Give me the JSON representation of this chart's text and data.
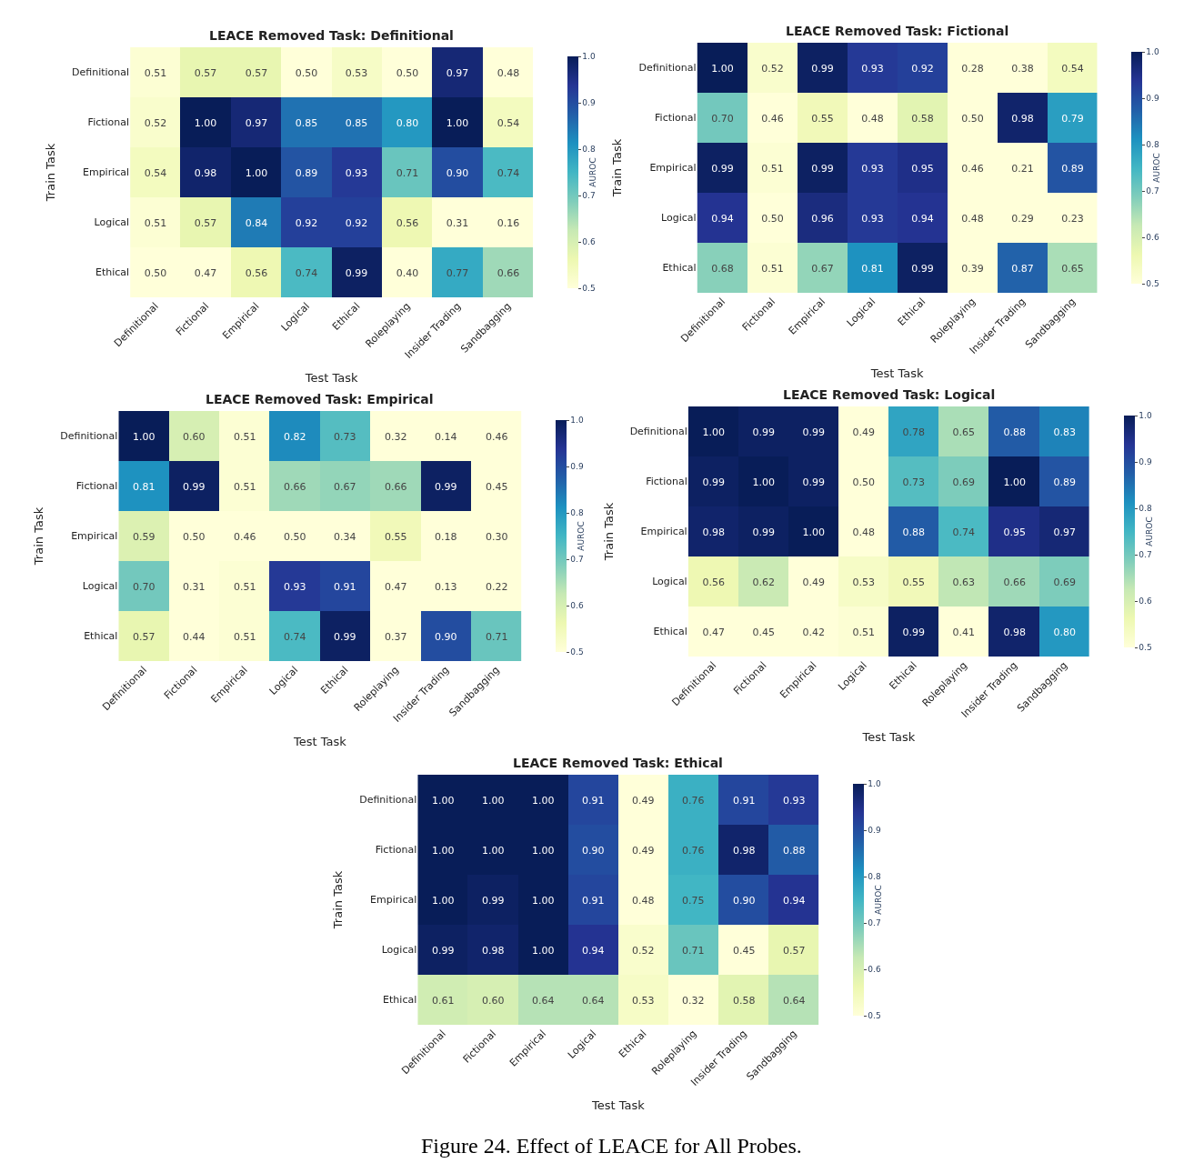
{
  "chart_data": [
    {
      "type": "heatmap",
      "title": "LEACE Removed Task: Definitional",
      "xlabel": "Test Task",
      "ylabel": "Train Task",
      "clabel": "AUROC",
      "categories": [
        "Definitional",
        "Fictional",
        "Empirical",
        "Logical",
        "Ethical",
        "Roleplaying",
        "Insider Trading",
        "Sandbagging"
      ],
      "y_categories": [
        "Definitional",
        "Fictional",
        "Empirical",
        "Logical",
        "Ethical"
      ],
      "cells": [
        [
          0.51,
          0.57,
          0.57,
          0.5,
          0.53,
          0.5,
          0.97,
          0.48
        ],
        [
          0.52,
          1.0,
          0.97,
          0.85,
          0.85,
          0.8,
          1.0,
          0.54
        ],
        [
          0.54,
          0.98,
          1.0,
          0.89,
          0.93,
          0.71,
          0.9,
          0.74
        ],
        [
          0.51,
          0.57,
          0.84,
          0.92,
          0.92,
          0.56,
          0.31,
          0.16
        ],
        [
          0.5,
          0.47,
          0.56,
          0.74,
          0.99,
          0.4,
          0.77,
          0.66
        ]
      ],
      "cell_labels": [
        [
          "0.51",
          "0.57",
          "0.57",
          "0.50",
          "0.53",
          "0.50",
          "0.97",
          "0.48"
        ],
        [
          "0.52",
          "1.00",
          "0.97",
          "0.85",
          "0.85",
          "0.80",
          "1.00",
          "0.54"
        ],
        [
          "0.54",
          "0.98",
          "1.00",
          "0.89",
          "0.93",
          "0.71",
          "0.90",
          "0.74"
        ],
        [
          "0.51",
          "0.57",
          "0.84",
          "0.92",
          "0.92",
          "0.56",
          "0.31",
          "0.16"
        ],
        [
          "0.50",
          "0.47",
          "0.56",
          "0.74",
          "0.99",
          "0.40",
          "0.77",
          "0.66"
        ]
      ],
      "clim": [
        0.5,
        1.0
      ],
      "cticks": [
        {
          "value": 0.5,
          "label": "0.5"
        },
        {
          "value": 0.6,
          "label": "0.6"
        },
        {
          "value": 0.7,
          "label": "0.7"
        },
        {
          "value": 0.8,
          "label": "0.8"
        },
        {
          "value": 0.9,
          "label": "0.9"
        },
        {
          "value": 1.0,
          "label": "1.0"
        }
      ]
    },
    {
      "type": "heatmap",
      "title": "LEACE Removed Task: Fictional",
      "xlabel": "Test Task",
      "ylabel": "Train Task",
      "clabel": "AUROC",
      "categories": [
        "Definitional",
        "Fictional",
        "Empirical",
        "Logical",
        "Ethical",
        "Roleplaying",
        "Insider Trading",
        "Sandbagging"
      ],
      "y_categories": [
        "Definitional",
        "Fictional",
        "Empirical",
        "Logical",
        "Ethical"
      ],
      "cells": [
        [
          1.0,
          0.52,
          0.99,
          0.93,
          0.92,
          0.28,
          0.38,
          0.54
        ],
        [
          0.7,
          0.46,
          0.55,
          0.48,
          0.58,
          0.5,
          0.98,
          0.79
        ],
        [
          0.99,
          0.51,
          0.99,
          0.93,
          0.95,
          0.46,
          0.21,
          0.89
        ],
        [
          0.94,
          0.5,
          0.96,
          0.93,
          0.94,
          0.48,
          0.29,
          0.23
        ],
        [
          0.68,
          0.51,
          0.67,
          0.81,
          0.99,
          0.39,
          0.87,
          0.65
        ]
      ],
      "cell_labels": [
        [
          "1.00",
          "0.52",
          "0.99",
          "0.93",
          "0.92",
          "0.28",
          "0.38",
          "0.54"
        ],
        [
          "0.70",
          "0.46",
          "0.55",
          "0.48",
          "0.58",
          "0.50",
          "0.98",
          "0.79"
        ],
        [
          "0.99",
          "0.51",
          "0.99",
          "0.93",
          "0.95",
          "0.46",
          "0.21",
          "0.89"
        ],
        [
          "0.94",
          "0.50",
          "0.96",
          "0.93",
          "0.94",
          "0.48",
          "0.29",
          "0.23"
        ],
        [
          "0.68",
          "0.51",
          "0.67",
          "0.81",
          "0.99",
          "0.39",
          "0.87",
          "0.65"
        ]
      ],
      "clim": [
        0.5,
        1.0
      ],
      "cticks": [
        {
          "value": 0.5,
          "label": "0.5"
        },
        {
          "value": 0.6,
          "label": "0.6"
        },
        {
          "value": 0.7,
          "label": "0.7"
        },
        {
          "value": 0.8,
          "label": "0.8"
        },
        {
          "value": 0.9,
          "label": "0.9"
        },
        {
          "value": 1.0,
          "label": "1.0"
        }
      ]
    },
    {
      "type": "heatmap",
      "title": "LEACE Removed Task: Empirical",
      "xlabel": "Test Task",
      "ylabel": "Train Task",
      "clabel": "AUROC",
      "categories": [
        "Definitional",
        "Fictional",
        "Empirical",
        "Logical",
        "Ethical",
        "Roleplaying",
        "Insider Trading",
        "Sandbagging"
      ],
      "y_categories": [
        "Definitional",
        "Fictional",
        "Empirical",
        "Logical",
        "Ethical"
      ],
      "cells": [
        [
          1.0,
          0.6,
          0.51,
          0.82,
          0.73,
          0.32,
          0.14,
          0.46
        ],
        [
          0.81,
          0.99,
          0.51,
          0.66,
          0.67,
          0.66,
          0.99,
          0.45
        ],
        [
          0.59,
          0.5,
          0.46,
          0.5,
          0.34,
          0.55,
          0.18,
          0.3
        ],
        [
          0.7,
          0.31,
          0.51,
          0.93,
          0.91,
          0.47,
          0.13,
          0.22
        ],
        [
          0.57,
          0.44,
          0.51,
          0.74,
          0.99,
          0.37,
          0.9,
          0.71
        ]
      ],
      "cell_labels": [
        [
          "1.00",
          "0.60",
          "0.51",
          "0.82",
          "0.73",
          "0.32",
          "0.14",
          "0.46"
        ],
        [
          "0.81",
          "0.99",
          "0.51",
          "0.66",
          "0.67",
          "0.66",
          "0.99",
          "0.45"
        ],
        [
          "0.59",
          "0.50",
          "0.46",
          "0.50",
          "0.34",
          "0.55",
          "0.18",
          "0.30"
        ],
        [
          "0.70",
          "0.31",
          "0.51",
          "0.93",
          "0.91",
          "0.47",
          "0.13",
          "0.22"
        ],
        [
          "0.57",
          "0.44",
          "0.51",
          "0.74",
          "0.99",
          "0.37",
          "0.90",
          "0.71"
        ]
      ],
      "clim": [
        0.5,
        1.0
      ],
      "cticks": [
        {
          "value": 0.5,
          "label": "0.5"
        },
        {
          "value": 0.6,
          "label": "0.6"
        },
        {
          "value": 0.7,
          "label": "0.7"
        },
        {
          "value": 0.8,
          "label": "0.8"
        },
        {
          "value": 0.9,
          "label": "0.9"
        },
        {
          "value": 1.0,
          "label": "1.0"
        }
      ]
    },
    {
      "type": "heatmap",
      "title": "LEACE Removed Task: Logical",
      "xlabel": "Test Task",
      "ylabel": "Train Task",
      "clabel": "AUROC",
      "categories": [
        "Definitional",
        "Fictional",
        "Empirical",
        "Logical",
        "Ethical",
        "Roleplaying",
        "Insider Trading",
        "Sandbagging"
      ],
      "y_categories": [
        "Definitional",
        "Fictional",
        "Empirical",
        "Logical",
        "Ethical"
      ],
      "cells": [
        [
          1.0,
          0.99,
          0.99,
          0.49,
          0.78,
          0.65,
          0.88,
          0.83
        ],
        [
          0.99,
          1.0,
          0.99,
          0.5,
          0.73,
          0.69,
          1.0,
          0.89
        ],
        [
          0.98,
          0.99,
          1.0,
          0.48,
          0.88,
          0.74,
          0.95,
          0.97
        ],
        [
          0.56,
          0.62,
          0.49,
          0.53,
          0.55,
          0.63,
          0.66,
          0.69
        ],
        [
          0.47,
          0.45,
          0.42,
          0.51,
          0.99,
          0.41,
          0.98,
          0.8
        ]
      ],
      "cell_labels": [
        [
          "1.00",
          "0.99",
          "0.99",
          "0.49",
          "0.78",
          "0.65",
          "0.88",
          "0.83"
        ],
        [
          "0.99",
          "1.00",
          "0.99",
          "0.50",
          "0.73",
          "0.69",
          "1.00",
          "0.89"
        ],
        [
          "0.98",
          "0.99",
          "1.00",
          "0.48",
          "0.88",
          "0.74",
          "0.95",
          "0.97"
        ],
        [
          "0.56",
          "0.62",
          "0.49",
          "0.53",
          "0.55",
          "0.63",
          "0.66",
          "0.69"
        ],
        [
          "0.47",
          "0.45",
          "0.42",
          "0.51",
          "0.99",
          "0.41",
          "0.98",
          "0.80"
        ]
      ],
      "clim": [
        0.5,
        1.0
      ],
      "cticks": [
        {
          "value": 0.5,
          "label": "0.5"
        },
        {
          "value": 0.6,
          "label": "0.6"
        },
        {
          "value": 0.7,
          "label": "0.7"
        },
        {
          "value": 0.8,
          "label": "0.8"
        },
        {
          "value": 0.9,
          "label": "0.9"
        },
        {
          "value": 1.0,
          "label": "1.0"
        }
      ]
    },
    {
      "type": "heatmap",
      "title": "LEACE Removed Task: Ethical",
      "xlabel": "Test Task",
      "ylabel": "Train Task",
      "clabel": "AUROC",
      "categories": [
        "Definitional",
        "Fictional",
        "Empirical",
        "Logical",
        "Ethical",
        "Roleplaying",
        "Insider Trading",
        "Sandbagging"
      ],
      "y_categories": [
        "Definitional",
        "Fictional",
        "Empirical",
        "Logical",
        "Ethical"
      ],
      "cells": [
        [
          1.0,
          1.0,
          1.0,
          0.91,
          0.49,
          0.76,
          0.91,
          0.93
        ],
        [
          1.0,
          1.0,
          1.0,
          0.9,
          0.49,
          0.76,
          0.98,
          0.88
        ],
        [
          1.0,
          0.99,
          1.0,
          0.91,
          0.48,
          0.75,
          0.9,
          0.94
        ],
        [
          0.99,
          0.98,
          1.0,
          0.94,
          0.52,
          0.71,
          0.45,
          0.57
        ],
        [
          0.61,
          0.6,
          0.64,
          0.64,
          0.53,
          0.32,
          0.58,
          0.64
        ]
      ],
      "cell_labels": [
        [
          "1.00",
          "1.00",
          "1.00",
          "0.91",
          "0.49",
          "0.76",
          "0.91",
          "0.93"
        ],
        [
          "1.00",
          "1.00",
          "1.00",
          "0.90",
          "0.49",
          "0.76",
          "0.98",
          "0.88"
        ],
        [
          "1.00",
          "0.99",
          "1.00",
          "0.91",
          "0.48",
          "0.75",
          "0.90",
          "0.94"
        ],
        [
          "0.99",
          "0.98",
          "1.00",
          "0.94",
          "0.52",
          "0.71",
          "0.45",
          "0.57"
        ],
        [
          "0.61",
          "0.60",
          "0.64",
          "0.64",
          "0.53",
          "0.32",
          "0.58",
          "0.64"
        ]
      ],
      "clim": [
        0.5,
        1.0
      ],
      "cticks": [
        {
          "value": 0.5,
          "label": "0.5"
        },
        {
          "value": 0.6,
          "label": "0.6"
        },
        {
          "value": 0.7,
          "label": "0.7"
        },
        {
          "value": 0.8,
          "label": "0.8"
        },
        {
          "value": 0.9,
          "label": "0.9"
        },
        {
          "value": 1.0,
          "label": "1.0"
        }
      ],
      "annotations": [
        "Figure 24. Effect of LEACE for All Probes."
      ]
    }
  ]
}
